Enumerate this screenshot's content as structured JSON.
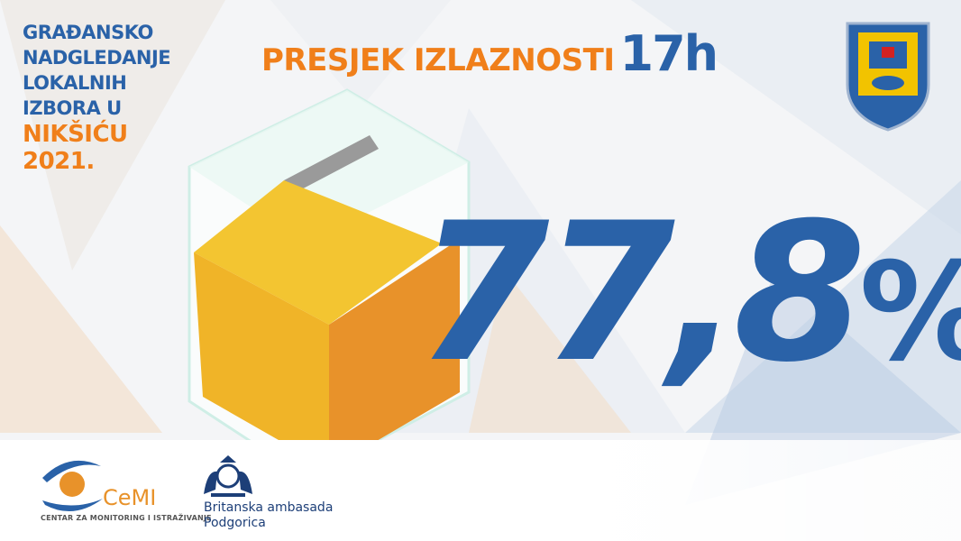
{
  "side_title": {
    "lines": [
      "GRAĐANSKO",
      "NADGLEDANJE",
      "LOKALNIH",
      "IZBORA U"
    ],
    "highlight_lines": [
      "NIKŠIĆU",
      "2021."
    ]
  },
  "headline": {
    "label": "PRESJEK IZLAZNOSTI",
    "time": "17h"
  },
  "turnout": {
    "value": "77,8",
    "unit": "%"
  },
  "footer": {
    "cemi_logo_text": "CeMI",
    "cemi_subtitle": "CENTAR ZA MONITORING I ISTRAŽIVANJE",
    "embassy_line1": "Britanska ambasada",
    "embassy_line2": "Podgorica"
  },
  "colors": {
    "blue": "#2a62a8",
    "orange": "#f07f1a",
    "box_yellow": "#f3c531",
    "box_orange": "#e8922a"
  }
}
